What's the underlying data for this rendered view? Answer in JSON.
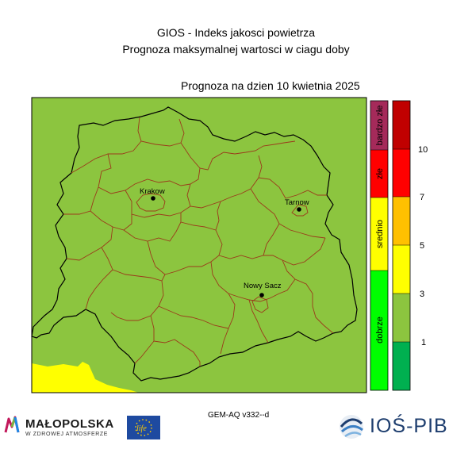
{
  "header": {
    "title": "GIOS - Indeks jakosci powietrza",
    "subtitle": "Prognoza maksymalnej wartosci w ciagu doby",
    "date_label": "Prognoza na dzien  10 kwietnia 2025"
  },
  "map": {
    "background_color": "#8cc53f",
    "border_color": "#000000",
    "district_border_color": "#9b3a1b",
    "outside_color": "#ffff00",
    "cities": [
      {
        "name": "Krakow"
      },
      {
        "name": "Tarnow"
      },
      {
        "name": "Nowy Sacz"
      }
    ]
  },
  "legend": {
    "categories": [
      {
        "label": "bardzo złe",
        "color": "#a52a5a"
      },
      {
        "label": "złe",
        "color": "#ff0000"
      },
      {
        "label": "srednio",
        "color": "#ffff00"
      },
      {
        "label": "dobrze",
        "color": "#00ff00"
      }
    ],
    "scale_colors": [
      "#c00000",
      "#ff0000",
      "#ffc000",
      "#ffff00",
      "#8cc53f",
      "#00b050"
    ],
    "scale_ticks": [
      "10",
      "7",
      "5",
      "3",
      "1"
    ]
  },
  "footer": {
    "model_version": "GEM-AQ v332--d",
    "malopolska_name": "MAŁOPOLSKA",
    "malopolska_sub": "W ZDROWEJ ATMOSFERZE",
    "life_label": "life",
    "ios_name": "IOŚ-PIB"
  }
}
